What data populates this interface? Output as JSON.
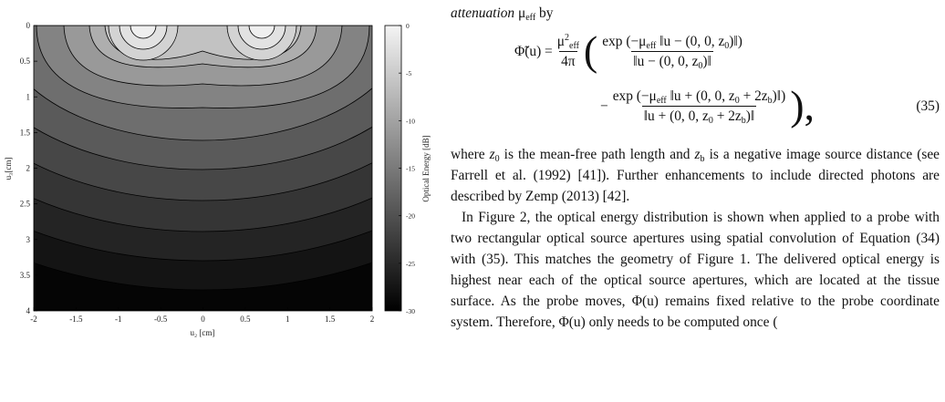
{
  "figure": {
    "x_label": "u₂ [cm]",
    "y_label": "u₃[cm]",
    "colorbar_label": "Optical Energy [dB]",
    "xlim": [
      -2,
      2
    ],
    "xticks": [
      -2,
      -1.5,
      -1,
      -0.5,
      0,
      0.5,
      1,
      1.5,
      2
    ],
    "ylim": [
      0,
      4
    ],
    "yticks": [
      0,
      0.5,
      1,
      1.5,
      2,
      2.5,
      3,
      3.5,
      4
    ],
    "clim": [
      -30,
      0
    ],
    "cticks": [
      0,
      -5,
      -10,
      -15,
      -20,
      -25,
      -30
    ]
  },
  "text": {
    "intro": [
      "attenuation",
      "μ",
      "eff",
      "by"
    ],
    "equation": [
      "Φ̃(u) =",
      "μ",
      "2",
      "eff",
      "4π",
      "(",
      "exp (−μ",
      "eff",
      " ‖u − (0, 0, z",
      "0",
      ")‖)",
      "‖u − (0, 0, z",
      "0",
      ")‖",
      "−",
      "exp (−μ",
      "eff",
      " ‖u + (0, 0, z",
      "0",
      " + 2z",
      "b",
      ")‖)",
      "‖u + (0, 0, z",
      "0",
      " + 2z",
      "b",
      ")‖",
      "),",
      "(35)"
    ],
    "paragraph1": [
      "where ",
      "z",
      "0",
      " is the mean-free path length and ",
      "z",
      "b",
      " is a negative image source distance (see Farrell et al. (1992) [41]). Further enhancements to include directed photons are described by Zemp (2013) [42]."
    ],
    "paragraph2": [
      "In Figure 2, the optical energy distribution is shown when applied to a probe with two rectangular optical source apertures using spatial convolution of Equation (34) with (35). This matches the geometry of Figure 1. The delivered optical energy is highest near each of the optical source apertures, which are located at the tissue surface. As the probe moves, ",
      "Φ(u)",
      " remains fixed relative to the probe coordinate system. Therefore, ",
      "Φ(u)",
      " only needs to be computed once ("
    ]
  }
}
